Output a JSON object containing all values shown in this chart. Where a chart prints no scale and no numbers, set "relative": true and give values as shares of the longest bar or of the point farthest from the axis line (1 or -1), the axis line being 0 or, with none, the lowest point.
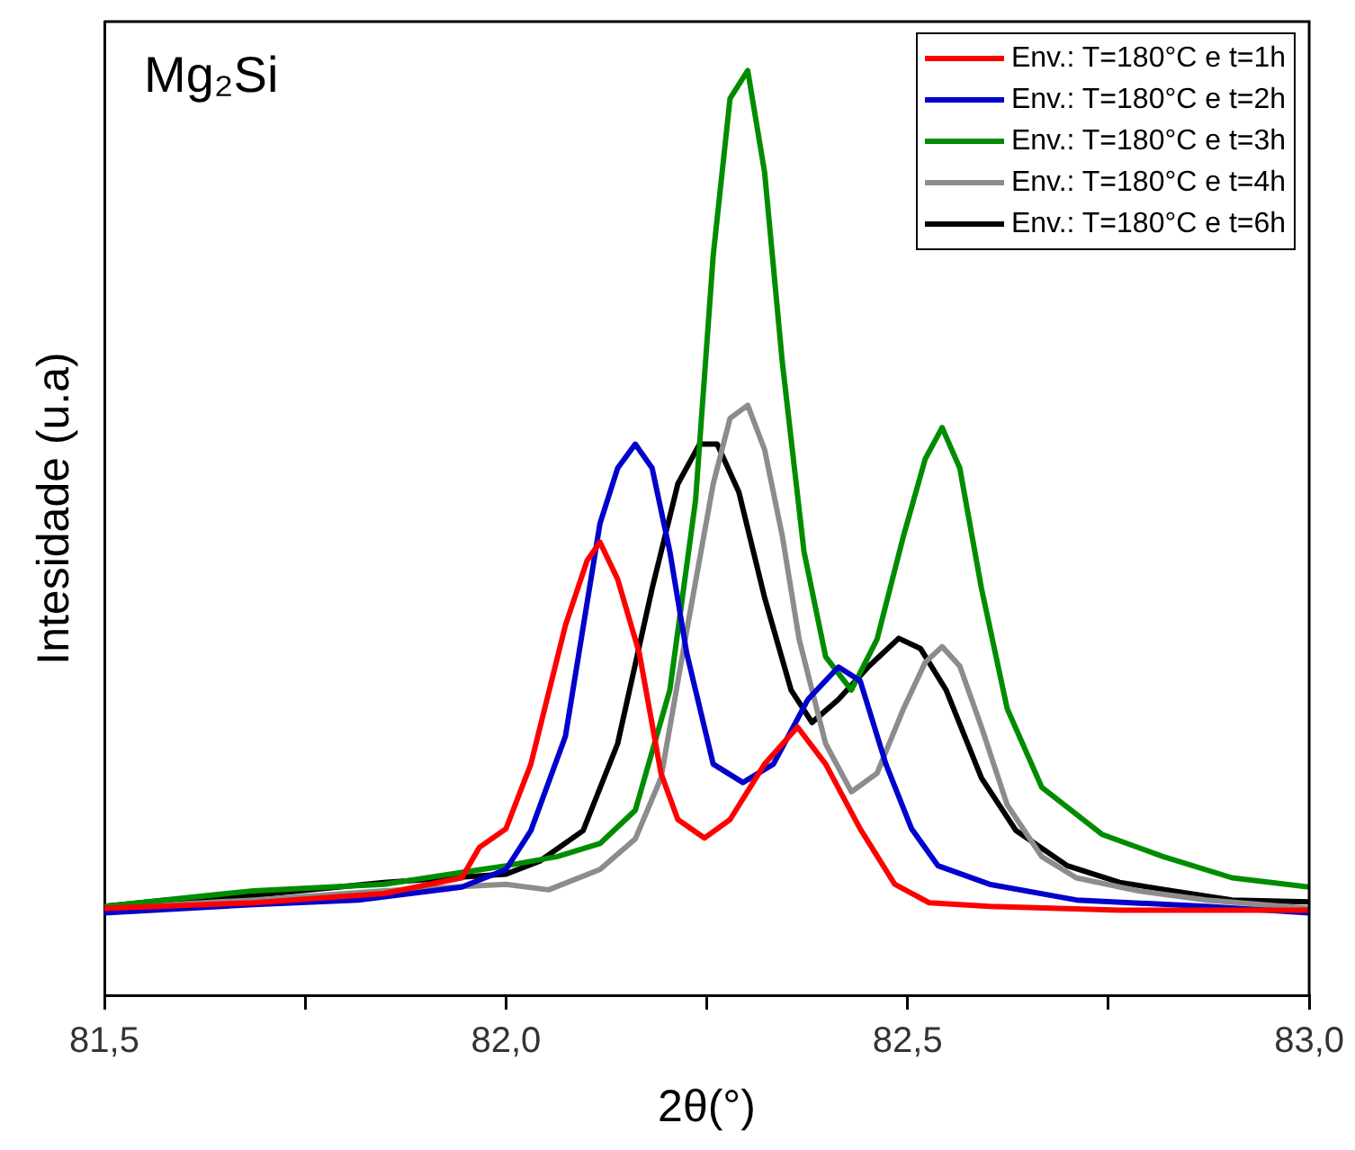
{
  "chart_data": {
    "type": "line",
    "xlabel": "2θ(°)",
    "ylabel": "Intesidade (u.a)",
    "relative": true,
    "legend": "top right",
    "grid": false,
    "annotations": [
      "Mg₂Si"
    ],
    "xlim": [
      81.5,
      83.0
    ],
    "xticks": [
      {
        "value": 81.5,
        "label": "81,5"
      },
      {
        "value": 81.75,
        "label": null
      },
      {
        "value": 82.0,
        "label": "82,0"
      },
      {
        "value": 82.25,
        "label": null
      },
      {
        "value": 82.5,
        "label": "82,5"
      },
      {
        "value": 82.75,
        "label": null
      },
      {
        "value": 83.0,
        "label": "83,0"
      }
    ],
    "series": [
      {
        "name": "Env.: T=180°C e t=1h",
        "color": "#ff0000",
        "x": [
          81.5,
          81.686,
          81.848,
          81.945,
          81.967,
          82.0,
          82.031,
          82.074,
          82.101,
          82.117,
          82.139,
          82.166,
          82.193,
          82.214,
          82.247,
          82.279,
          82.322,
          82.363,
          82.398,
          82.441,
          82.484,
          82.527,
          82.602,
          82.764,
          83.0
        ],
        "values": [
          0.094,
          0.1,
          0.11,
          0.127,
          0.16,
          0.18,
          0.25,
          0.4,
          0.47,
          0.49,
          0.45,
          0.37,
          0.24,
          0.19,
          0.17,
          0.19,
          0.25,
          0.29,
          0.25,
          0.18,
          0.12,
          0.1,
          0.096,
          0.092,
          0.092
        ]
      },
      {
        "name": "Env.: T=180°C e t=2h",
        "color": "#0000cc",
        "x": [
          81.5,
          81.686,
          81.816,
          81.945,
          82.0,
          82.031,
          82.074,
          82.117,
          82.139,
          82.161,
          82.182,
          82.204,
          82.225,
          82.258,
          82.295,
          82.333,
          82.376,
          82.414,
          82.441,
          82.473,
          82.505,
          82.538,
          82.602,
          82.71,
          82.872,
          83.0
        ],
        "values": [
          0.089,
          0.098,
          0.103,
          0.117,
          0.136,
          0.178,
          0.28,
          0.51,
          0.57,
          0.596,
          0.57,
          0.48,
          0.37,
          0.25,
          0.23,
          0.25,
          0.32,
          0.355,
          0.34,
          0.25,
          0.18,
          0.14,
          0.12,
          0.103,
          0.096,
          0.089
        ]
      },
      {
        "name": "Env.: T=180°C e t=3h",
        "color": "#008c00",
        "x": [
          81.5,
          81.686,
          81.848,
          82.0,
          82.064,
          82.117,
          82.161,
          82.204,
          82.236,
          82.258,
          82.279,
          82.301,
          82.322,
          82.344,
          82.371,
          82.398,
          82.43,
          82.462,
          82.495,
          82.522,
          82.543,
          82.565,
          82.592,
          82.624,
          82.667,
          82.742,
          82.818,
          82.904,
          83.0
        ],
        "values": [
          0.096,
          0.113,
          0.12,
          0.14,
          0.15,
          0.164,
          0.2,
          0.33,
          0.535,
          0.8,
          0.97,
          1,
          0.89,
          0.685,
          0.48,
          0.366,
          0.33,
          0.385,
          0.497,
          0.58,
          0.614,
          0.57,
          0.44,
          0.31,
          0.225,
          0.174,
          0.15,
          0.127,
          0.117
        ]
      },
      {
        "name": "Env.: T=180°C e t=4h",
        "color": "#8c8c8c",
        "x": [
          81.5,
          81.686,
          81.848,
          82.0,
          82.053,
          82.117,
          82.161,
          82.193,
          82.225,
          82.258,
          82.279,
          82.301,
          82.322,
          82.344,
          82.365,
          82.398,
          82.43,
          82.462,
          82.495,
          82.522,
          82.543,
          82.565,
          82.592,
          82.624,
          82.667,
          82.71,
          82.786,
          82.872,
          83.0
        ],
        "values": [
          0.094,
          0.103,
          0.113,
          0.12,
          0.114,
          0.136,
          0.169,
          0.235,
          0.394,
          0.553,
          0.624,
          0.638,
          0.59,
          0.497,
          0.385,
          0.272,
          0.22,
          0.24,
          0.31,
          0.36,
          0.377,
          0.356,
          0.29,
          0.206,
          0.15,
          0.127,
          0.113,
          0.103,
          0.094
        ]
      },
      {
        "name": "Env.: T=180°C e t=6h",
        "color": "#000000",
        "x": [
          81.5,
          81.579,
          81.686,
          81.848,
          82.0,
          82.042,
          82.096,
          82.139,
          82.182,
          82.214,
          82.241,
          82.263,
          82.29,
          82.322,
          82.355,
          82.381,
          82.414,
          82.452,
          82.489,
          82.516,
          82.548,
          82.592,
          82.635,
          82.699,
          82.764,
          82.829,
          82.904,
          83.0
        ],
        "values": [
          0.096,
          0.103,
          0.108,
          0.122,
          0.131,
          0.145,
          0.178,
          0.272,
          0.44,
          0.553,
          0.596,
          0.596,
          0.544,
          0.43,
          0.33,
          0.295,
          0.32,
          0.356,
          0.386,
          0.375,
          0.33,
          0.235,
          0.178,
          0.14,
          0.122,
          0.113,
          0.103,
          0.101
        ]
      }
    ]
  }
}
